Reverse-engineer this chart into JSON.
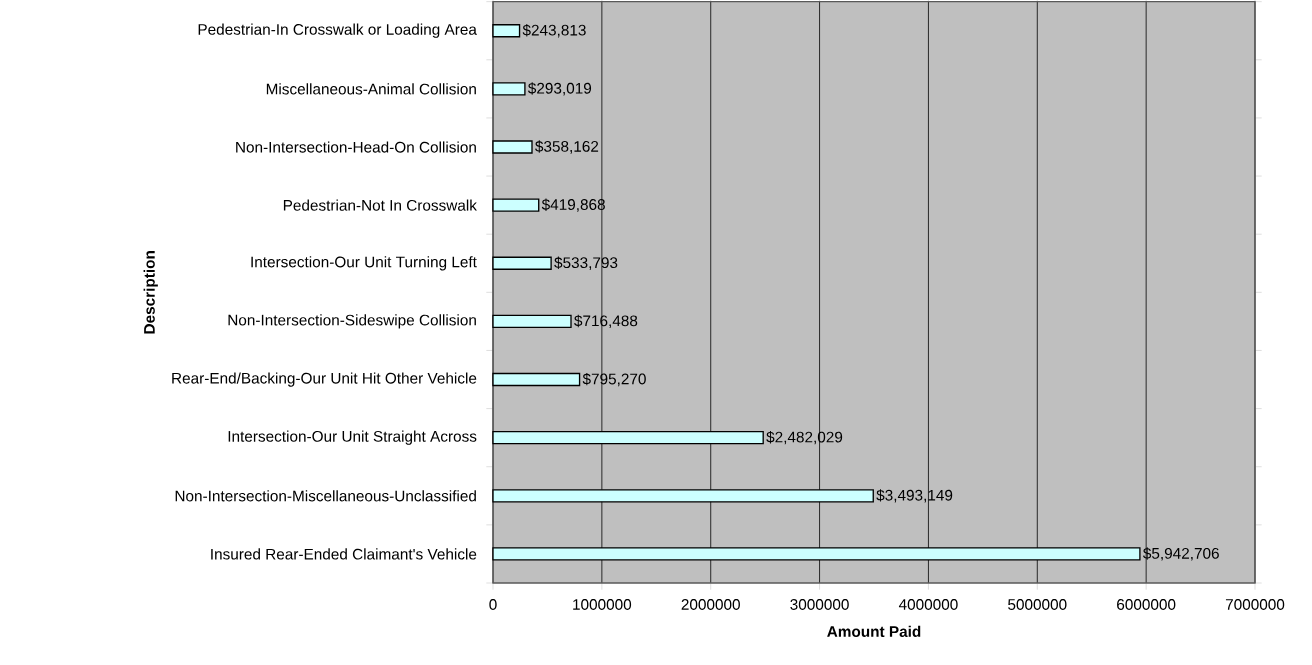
{
  "chart_data": {
    "type": "bar",
    "orientation": "horizontal",
    "xlabel": "Amount Paid",
    "ylabel": "Description",
    "categories": [
      "Pedestrian-In Crosswalk or Loading Area",
      "Miscellaneous-Animal Collision",
      "Non-Intersection-Head-On Collision",
      "Pedestrian-Not In Crosswalk",
      "Intersection-Our Unit Turning Left",
      "Non-Intersection-Sideswipe Collision",
      "Rear-End/Backing-Our Unit Hit Other Vehicle",
      "Intersection-Our Unit Straight Across",
      "Non-Intersection-Miscellaneous-Unclassified",
      "Insured Rear-Ended Claimant's Vehicle"
    ],
    "values": [
      243813,
      293019,
      358162,
      419868,
      533793,
      716488,
      795270,
      2482029,
      3493149,
      5942706
    ],
    "value_labels": [
      "$243,813",
      "$293,019",
      "$358,162",
      "$419,868",
      "$533,793",
      "$716,488",
      "$795,270",
      "$2,482,029",
      "$3,493,149",
      "$5,942,706"
    ],
    "color": "#ccffff",
    "xlim": [
      0,
      7000000
    ],
    "xticks": [
      0,
      1000000,
      2000000,
      3000000,
      4000000,
      5000000,
      6000000,
      7000000
    ],
    "grid": "x"
  }
}
